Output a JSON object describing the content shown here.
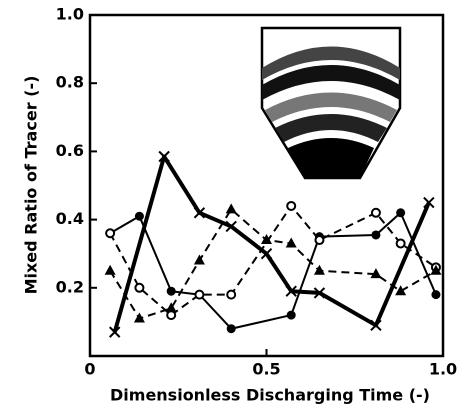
{
  "chart_data": {
    "type": "line",
    "xlabel": "Dimensionless Discharging Time (-)",
    "ylabel": "Mixed Ratio of Tracer (-)",
    "xlim": [
      0,
      1
    ],
    "ylim": [
      0,
      1
    ],
    "xticks": [
      0,
      0.5,
      {
        "value": 1,
        "label": "1.0"
      }
    ],
    "yticks": [
      0.2,
      0.4,
      0.6,
      0.8,
      {
        "value": 1,
        "label": "1.0"
      }
    ],
    "series": [
      {
        "color": "#000000",
        "marker": "x",
        "dashed": false,
        "width": 4,
        "x": [
          0.07,
          0.21,
          0.31,
          0.4,
          0.5,
          0.57,
          0.65,
          0.81,
          0.96
        ],
        "values": [
          0.07,
          0.585,
          0.42,
          0.38,
          0.3,
          0.19,
          0.185,
          0.09,
          0.45
        ]
      },
      {
        "color": "#000000",
        "marker": "filled-circle",
        "dashed": false,
        "width": 2,
        "x": [
          0.057,
          0.14,
          0.23,
          0.31,
          0.4,
          0.57,
          0.65,
          0.81,
          0.88,
          0.98
        ],
        "values": [
          0.36,
          0.41,
          0.19,
          0.18,
          0.08,
          0.12,
          0.35,
          0.355,
          0.42,
          0.18
        ]
      },
      {
        "color": "#000000",
        "marker": "open-circle",
        "dashed": true,
        "width": 2,
        "x": [
          0.057,
          0.14,
          0.23,
          0.31,
          0.4,
          0.57,
          0.65,
          0.81,
          0.88,
          0.98
        ],
        "values": [
          0.36,
          0.2,
          0.12,
          0.18,
          0.18,
          0.44,
          0.34,
          0.42,
          0.33,
          0.26
        ]
      },
      {
        "color": "#000000",
        "marker": "triangle",
        "dashed": true,
        "width": 2,
        "x": [
          0.057,
          0.14,
          0.23,
          0.31,
          0.4,
          0.5,
          0.57,
          0.65,
          0.81,
          0.88,
          0.98
        ],
        "values": [
          0.25,
          0.11,
          0.14,
          0.28,
          0.43,
          0.34,
          0.33,
          0.25,
          0.24,
          0.19,
          0.25
        ]
      }
    ]
  }
}
